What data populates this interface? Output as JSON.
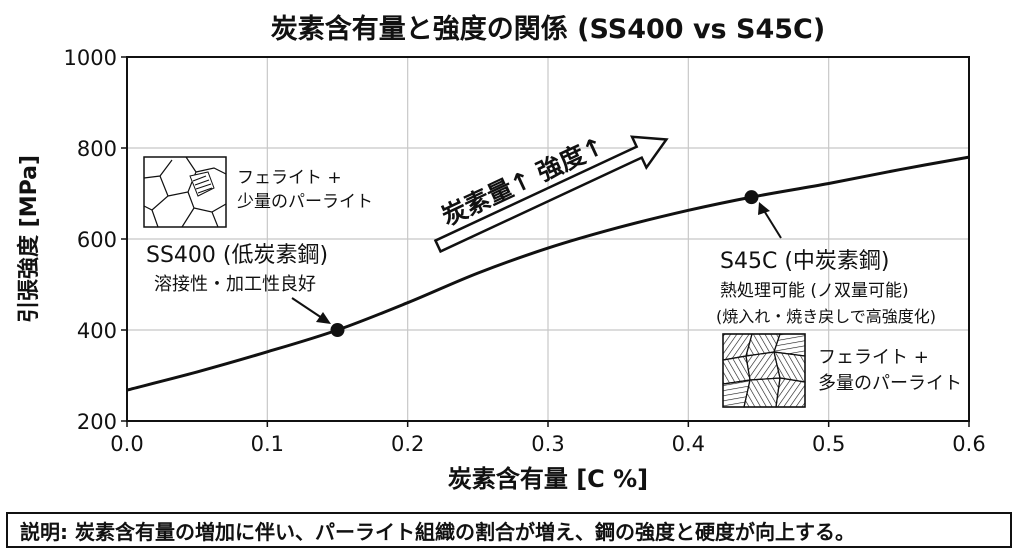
{
  "chart_data": {
    "type": "line",
    "title": "炭素含有量と強度の関係 (SS400 vs S45C)",
    "xlabel": "炭素含有量 [C %]",
    "ylabel": "引張強度 [MPa]",
    "xlim": [
      0.0,
      0.6
    ],
    "ylim": [
      200,
      1000
    ],
    "xticks": [
      "0.0",
      "0.1",
      "0.2",
      "0.3",
      "0.4",
      "0.5",
      "0.6"
    ],
    "yticks": [
      "200",
      "400",
      "600",
      "800",
      "1000"
    ],
    "grid": true,
    "series": [
      {
        "x": [
          0.0,
          0.05,
          0.1,
          0.15,
          0.2,
          0.25,
          0.3,
          0.35,
          0.4,
          0.445,
          0.5,
          0.55,
          0.6
        ],
        "y": [
          268,
          308,
          352,
          400,
          460,
          525,
          580,
          625,
          663,
          692,
          722,
          752,
          780
        ]
      }
    ],
    "points": [
      {
        "name": "SS400",
        "x": 0.15,
        "y": 400
      },
      {
        "name": "S45C",
        "x": 0.445,
        "y": 692
      }
    ],
    "arrow_label": "炭素量↑ 強度↑",
    "annotations": {
      "ss400_title": "SS400 (低炭素鋼)",
      "ss400_note": "溶接性・加工性良好",
      "s45c_title": "S45C (中炭素鋼)",
      "s45c_note1": "熱処理可能 (ノ双量可能)",
      "s45c_note2": "(焼入れ・焼き戻しで高強度化)",
      "micro1_line1": "フェライト +",
      "micro1_line2": "少量のパーライト",
      "micro2_line1": "フェライト +",
      "micro2_line2": "多量のパーライト"
    }
  },
  "caption": "説明: 炭素含有量の増加に伴い、パーライト組織の割合が増え、鋼の強度と硬度が向上する。"
}
